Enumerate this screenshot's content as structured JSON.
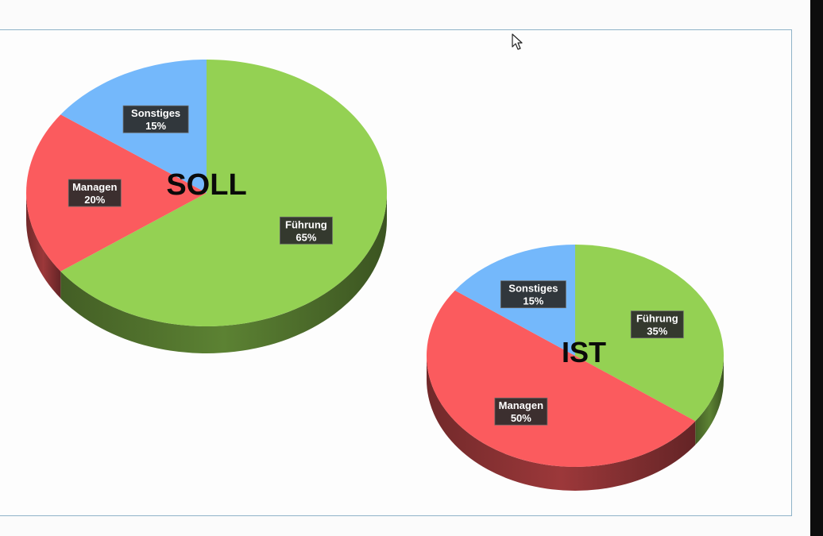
{
  "colors": {
    "frame_border": "#8fb3c8",
    "background": "#fdfdfd"
  },
  "cursor": {
    "icon": "mouse-pointer-icon"
  },
  "chart_data": [
    {
      "type": "pie",
      "title": "SOLL",
      "style": "3d",
      "start": "top",
      "direction": "clockwise",
      "slices": [
        {
          "label": "Führung",
          "value": 65,
          "display": "65%",
          "color": "#94d153"
        },
        {
          "label": "Managen",
          "value": 20,
          "display": "20%",
          "color": "#fb5b5e"
        },
        {
          "label": "Sonstiges",
          "value": 15,
          "display": "15%",
          "color": "#74b8fb"
        }
      ]
    },
    {
      "type": "pie",
      "title": "IST",
      "style": "3d",
      "start": "top",
      "direction": "clockwise",
      "slices": [
        {
          "label": "Führung",
          "value": 35,
          "display": "35%",
          "color": "#94d153"
        },
        {
          "label": "Managen",
          "value": 50,
          "display": "50%",
          "color": "#fb5b5e"
        },
        {
          "label": "Sonstiges",
          "value": 15,
          "display": "15%",
          "color": "#74b8fb"
        }
      ]
    }
  ]
}
